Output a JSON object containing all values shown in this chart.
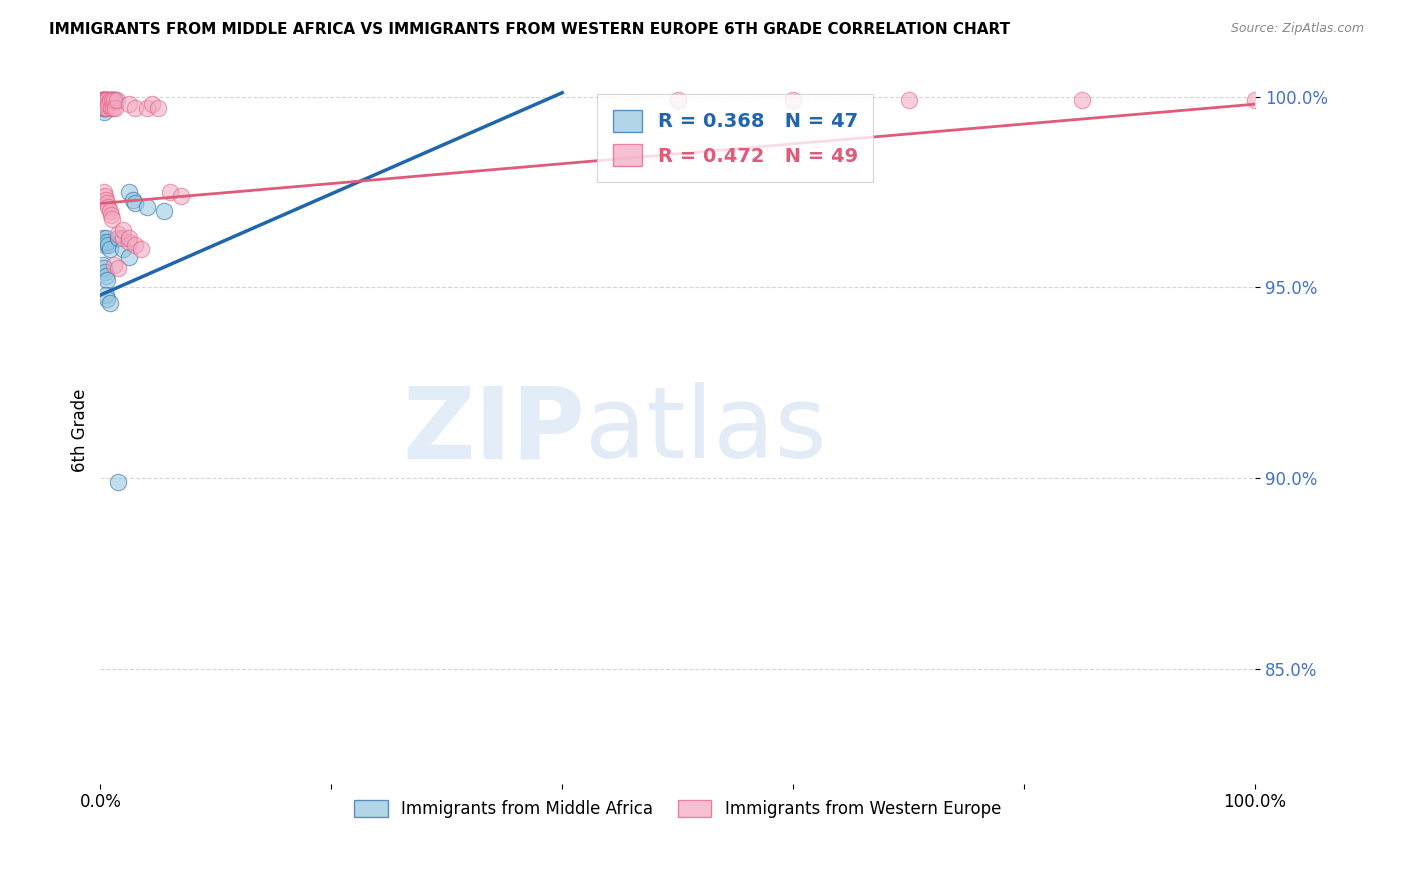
{
  "title": "IMMIGRANTS FROM MIDDLE AFRICA VS IMMIGRANTS FROM WESTERN EUROPE 6TH GRADE CORRELATION CHART",
  "source": "Source: ZipAtlas.com",
  "ylabel": "6th Grade",
  "xlim": [
    0.0,
    1.0
  ],
  "ylim": [
    0.82,
    1.005
  ],
  "yticks": [
    0.85,
    0.9,
    0.95,
    1.0
  ],
  "ytick_labels": [
    "85.0%",
    "90.0%",
    "95.0%",
    "100.0%"
  ],
  "blue_color": "#92c5de",
  "pink_color": "#f4a6c0",
  "blue_line_color": "#2166ac",
  "pink_line_color": "#e05a7a",
  "R_blue": 0.368,
  "N_blue": 47,
  "R_pink": 0.472,
  "N_pink": 49,
  "watermark_zip": "ZIP",
  "watermark_atlas": "atlas",
  "blue_scatter_x": [
    0.001,
    0.001,
    0.001,
    0.002,
    0.002,
    0.002,
    0.003,
    0.003,
    0.003,
    0.003,
    0.004,
    0.004,
    0.004,
    0.005,
    0.005,
    0.006,
    0.007,
    0.008,
    0.009,
    0.01,
    0.011,
    0.012,
    0.013,
    0.002,
    0.003,
    0.004,
    0.005,
    0.006,
    0.007,
    0.008,
    0.025,
    0.028,
    0.03,
    0.04,
    0.055,
    0.002,
    0.003,
    0.004,
    0.005,
    0.006,
    0.015,
    0.02,
    0.025,
    0.005,
    0.006,
    0.008,
    0.015
  ],
  "blue_scatter_y": [
    0.999,
    0.998,
    0.997,
    0.999,
    0.998,
    0.997,
    0.999,
    0.998,
    0.997,
    0.996,
    0.999,
    0.998,
    0.997,
    0.999,
    0.998,
    0.999,
    0.999,
    0.999,
    0.999,
    0.999,
    0.999,
    0.999,
    0.999,
    0.963,
    0.962,
    0.961,
    0.963,
    0.962,
    0.961,
    0.96,
    0.975,
    0.973,
    0.972,
    0.971,
    0.97,
    0.956,
    0.955,
    0.954,
    0.953,
    0.952,
    0.963,
    0.96,
    0.958,
    0.948,
    0.947,
    0.946,
    0.899
  ],
  "pink_scatter_x": [
    0.001,
    0.001,
    0.002,
    0.002,
    0.003,
    0.003,
    0.004,
    0.004,
    0.005,
    0.005,
    0.006,
    0.006,
    0.007,
    0.008,
    0.009,
    0.01,
    0.011,
    0.012,
    0.013,
    0.014,
    0.003,
    0.004,
    0.005,
    0.006,
    0.007,
    0.008,
    0.009,
    0.01,
    0.025,
    0.03,
    0.04,
    0.045,
    0.05,
    0.06,
    0.07,
    0.015,
    0.02,
    0.025,
    0.012,
    0.015,
    0.5,
    0.6,
    0.7,
    0.85,
    1.0,
    0.02,
    0.025,
    0.03,
    0.035
  ],
  "pink_scatter_y": [
    0.999,
    0.998,
    0.999,
    0.998,
    0.999,
    0.998,
    0.999,
    0.997,
    0.999,
    0.998,
    0.999,
    0.997,
    0.998,
    0.999,
    0.997,
    0.999,
    0.997,
    0.999,
    0.997,
    0.999,
    0.975,
    0.974,
    0.973,
    0.972,
    0.971,
    0.97,
    0.969,
    0.968,
    0.998,
    0.997,
    0.997,
    0.998,
    0.997,
    0.975,
    0.974,
    0.964,
    0.963,
    0.962,
    0.956,
    0.955,
    0.999,
    0.999,
    0.999,
    0.999,
    0.999,
    0.965,
    0.963,
    0.961,
    0.96
  ],
  "blue_line_x0": 0.0,
  "blue_line_x1": 0.4,
  "blue_line_y0": 0.948,
  "blue_line_y1": 1.001,
  "pink_line_x0": 0.0,
  "pink_line_x1": 1.0,
  "pink_line_y0": 0.972,
  "pink_line_y1": 0.998
}
